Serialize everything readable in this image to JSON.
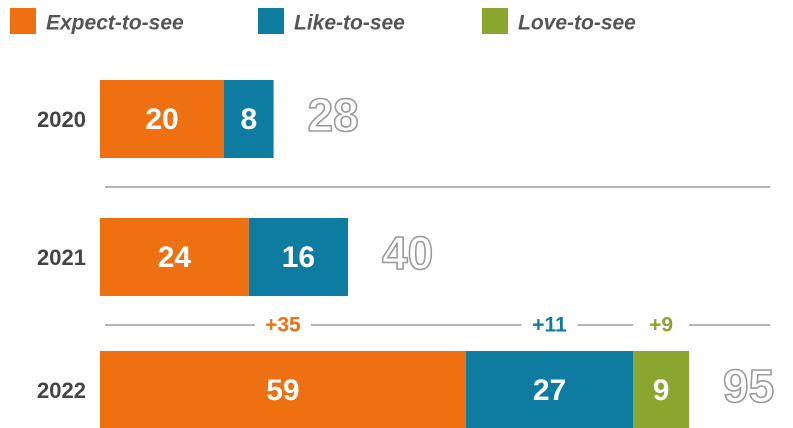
{
  "chart_data": {
    "type": "stacked-bar-horizontal",
    "categories": [
      "2020",
      "2021",
      "2022"
    ],
    "series": [
      {
        "name": "Expect-to-see",
        "color": "#ee7011",
        "values": [
          20,
          24,
          59
        ]
      },
      {
        "name": "Like-to-see",
        "color": "#0e7ca0",
        "values": [
          8,
          16,
          27
        ]
      },
      {
        "name": "Love-to-see",
        "color": "#8aa62e",
        "values": [
          null,
          null,
          9
        ]
      }
    ],
    "totals": [
      28,
      40,
      95
    ],
    "changes": {
      "values": [
        35,
        11,
        9
      ],
      "value_labels": [
        "+35",
        "+11",
        "+9"
      ]
    }
  }
}
